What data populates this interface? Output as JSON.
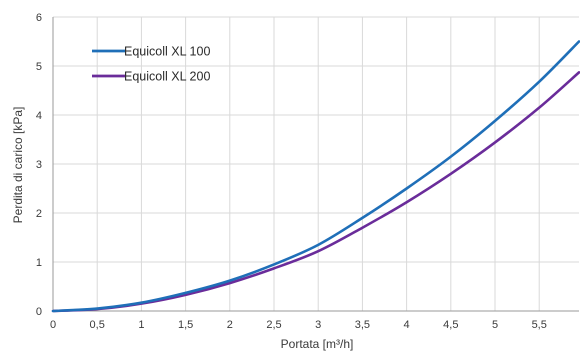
{
  "chart_data": {
    "type": "line",
    "xlabel": "Portata [m³/h]",
    "ylabel": "Perdita di carico [kPa]",
    "xlim": [
      0,
      5.95
    ],
    "ylim": [
      0,
      6
    ],
    "x_ticks": [
      0,
      0.5,
      1,
      1.5,
      2,
      2.5,
      3,
      3.5,
      4,
      4.5,
      5,
      5.5
    ],
    "x_tick_labels": [
      "0",
      "0,5",
      "1",
      "1,5",
      "2",
      "2,5",
      "3",
      "3,5",
      "4",
      "4,5",
      "5",
      "5,5"
    ],
    "y_ticks": [
      0,
      1,
      2,
      3,
      4,
      5,
      6
    ],
    "y_tick_labels": [
      "0",
      "1",
      "2",
      "3",
      "4",
      "5",
      "6"
    ],
    "grid": true,
    "legend_position": "top-left",
    "series": [
      {
        "name": "Equicoll XL 100",
        "color": "#1f6fb8",
        "x": [
          0,
          0.5,
          1,
          1.5,
          2,
          2.5,
          3,
          3.5,
          4,
          4.5,
          5,
          5.5,
          5.95
        ],
        "y": [
          0,
          0.05,
          0.17,
          0.37,
          0.62,
          0.95,
          1.35,
          1.9,
          2.5,
          3.15,
          3.88,
          4.68,
          5.5
        ]
      },
      {
        "name": "Equicoll XL 200",
        "color": "#6a2c9a",
        "x": [
          0,
          0.5,
          1,
          1.5,
          2,
          2.5,
          3,
          3.5,
          4,
          4.5,
          5,
          5.5,
          5.95
        ],
        "y": [
          0,
          0.04,
          0.15,
          0.33,
          0.57,
          0.87,
          1.22,
          1.7,
          2.22,
          2.8,
          3.44,
          4.15,
          4.87
        ]
      }
    ]
  }
}
